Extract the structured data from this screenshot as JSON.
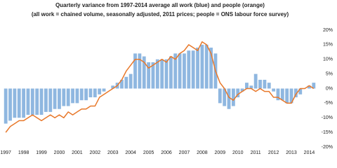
{
  "chart_data": {
    "type": "bar_line",
    "title": "Quarterly variance from 1997-2014 average all work (blue) and people (orange)",
    "subtitle": "(all work = chained volume, seasonally adjusted, 2011 prices; people = ONS labour force survey)",
    "categories": [
      "1997",
      null,
      null,
      null,
      "1998",
      null,
      null,
      null,
      "1999",
      null,
      null,
      null,
      "2000",
      null,
      null,
      null,
      "2001",
      null,
      null,
      null,
      "2002",
      null,
      null,
      null,
      "2003",
      null,
      null,
      null,
      "2004",
      null,
      null,
      null,
      "2005",
      null,
      null,
      null,
      "2006",
      null,
      null,
      null,
      "2007",
      null,
      null,
      null,
      "2008",
      null,
      null,
      null,
      "2009",
      null,
      null,
      null,
      "2010",
      null,
      null,
      null,
      "2011",
      null,
      null,
      null,
      "2012",
      null,
      null,
      null,
      "2013",
      null,
      null,
      null,
      "2014",
      null
    ],
    "series": [
      {
        "name": "all work",
        "type": "bar",
        "color": "#8fb7e0",
        "values": [
          -12,
          -11,
          -10,
          -10,
          -10,
          -9,
          -9,
          -9,
          -9,
          -8,
          -8,
          -7,
          -7,
          -6,
          -6,
          -5,
          -5,
          -4,
          -4,
          -3,
          -3,
          -2,
          -1,
          0,
          1,
          2,
          3,
          4,
          5,
          12,
          12,
          11,
          9,
          9,
          10,
          10,
          10,
          11,
          12,
          12,
          12,
          13,
          13,
          14,
          15,
          15,
          14,
          12,
          -5,
          -6,
          -7,
          -6,
          -3,
          -1,
          2,
          1,
          5,
          3,
          3,
          2,
          -1,
          -4,
          -4,
          -5,
          -5,
          -3,
          -2,
          0,
          1,
          2
        ]
      },
      {
        "name": "people",
        "type": "line",
        "color": "#e8782a",
        "values": [
          -15,
          -13,
          -12,
          -11,
          -11,
          -10,
          -9,
          -10,
          -11,
          -10,
          -9,
          -10,
          -9,
          -10,
          -8,
          -9,
          -8,
          -7,
          -7,
          -6,
          -6,
          -3,
          -2,
          -1,
          0,
          1,
          3,
          6,
          8,
          10,
          10,
          9,
          7,
          8,
          9,
          10,
          9,
          11,
          10,
          12,
          13,
          15,
          14,
          13,
          16,
          15,
          12,
          6,
          2,
          0,
          -3,
          -4,
          -2,
          -1,
          0,
          0,
          -1,
          0,
          -1,
          -1,
          -3,
          -3,
          -4,
          -5,
          -5,
          -2,
          0,
          0,
          1,
          0
        ]
      }
    ],
    "ylim": [
      -20,
      20
    ],
    "yticks": [
      {
        "value": 20,
        "label": "20%"
      },
      {
        "value": 15,
        "label": "15%"
      },
      {
        "value": 10,
        "label": "10%"
      },
      {
        "value": 5,
        "label": "5%"
      },
      {
        "value": 0,
        "label": "0%"
      },
      {
        "value": -5,
        "label": "-5%"
      },
      {
        "value": -10,
        "label": "-10%"
      },
      {
        "value": -15,
        "label": "-15%"
      },
      {
        "value": -20,
        "label": "-20%"
      }
    ]
  }
}
